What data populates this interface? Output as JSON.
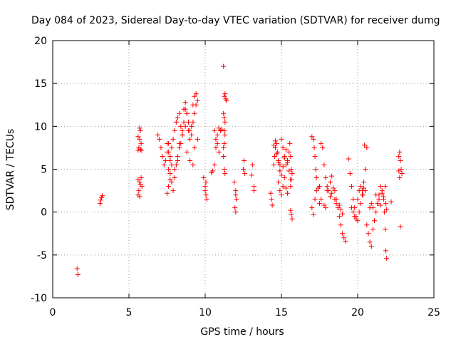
{
  "chart_data": {
    "type": "scatter",
    "title": "Day 084 of 2023, Sidereal Day-to-day VTEC variation (SDTVAR) for receiver dumg",
    "xlabel": "GPS time / hours",
    "ylabel": "SDTVAR / TECUs",
    "xlim": [
      0,
      25
    ],
    "ylim": [
      -10,
      20
    ],
    "xticks": [
      0,
      5,
      10,
      15,
      20,
      25
    ],
    "yticks": [
      -10,
      -5,
      0,
      5,
      10,
      15,
      20
    ],
    "grid": true,
    "marker": "+",
    "color": "#ff0000",
    "series": [
      {
        "name": "SDTVAR",
        "x": [
          1.6,
          1.65,
          3.1,
          3.15,
          3.2,
          3.25,
          5.6,
          5.65,
          5.7,
          5.75,
          5.8,
          5.6,
          5.65,
          5.7,
          5.75,
          5.8,
          5.85,
          5.6,
          5.7,
          5.8,
          5.6,
          5.7,
          5.75,
          6.9,
          7.0,
          7.1,
          7.2,
          7.3,
          7.4,
          7.5,
          7.6,
          7.7,
          7.8,
          7.9,
          8.0,
          8.1,
          8.2,
          8.3,
          8.4,
          8.5,
          8.6,
          8.7,
          8.8,
          8.9,
          9.0,
          9.1,
          9.2,
          9.3,
          9.4,
          7.6,
          7.7,
          7.8,
          7.9,
          8.0,
          8.1,
          8.2,
          8.3,
          8.4,
          8.5,
          8.6,
          8.7,
          8.8,
          8.9,
          9.0,
          9.1,
          9.2,
          9.3,
          9.4,
          9.5,
          7.5,
          7.6,
          7.7,
          7.8,
          7.5,
          7.6,
          7.7,
          8.0,
          8.2,
          8.3,
          8.5,
          8.7,
          8.8,
          9.0,
          9.2,
          9.3,
          9.5,
          9.9,
          10.0,
          10.05,
          10.1,
          10.05,
          10.0,
          10.4,
          10.5,
          10.6,
          10.7,
          10.8,
          10.9,
          11.0,
          11.1,
          10.6,
          10.7,
          10.8,
          10.9,
          11.0,
          11.2,
          11.25,
          11.3,
          11.35,
          11.4,
          11.2,
          11.25,
          11.3,
          11.25,
          11.3,
          11.2,
          11.25,
          11.3,
          11.2,
          11.25,
          11.9,
          12.0,
          12.05,
          11.95,
          12.0,
          12.0,
          12.5,
          12.6,
          12.55,
          13.1,
          13.05,
          13.2,
          13.2,
          14.3,
          14.35,
          14.4,
          14.5,
          14.55,
          14.6,
          14.7,
          14.75,
          14.8,
          14.9,
          15.0,
          15.1,
          15.2,
          15.3,
          15.4,
          15.5,
          15.55,
          15.6,
          15.65,
          15.7,
          14.5,
          14.6,
          14.7,
          14.8,
          14.9,
          15.0,
          15.1,
          15.2,
          15.3,
          15.4,
          15.5,
          15.6,
          14.8,
          14.9,
          15.0,
          15.1,
          15.2,
          15.3,
          15.4,
          15.6,
          15.65,
          15.7,
          15.6,
          15.65,
          17.0,
          17.1,
          17.15,
          17.2,
          17.25,
          17.3,
          17.0,
          17.1,
          17.2,
          17.3,
          17.4,
          17.5,
          17.6,
          17.7,
          17.8,
          17.9,
          18.0,
          18.1,
          18.2,
          18.3,
          18.4,
          18.5,
          18.6,
          18.7,
          18.8,
          18.9,
          19.0,
          19.1,
          19.2,
          17.5,
          17.6,
          17.8,
          17.9,
          18.0,
          18.2,
          18.3,
          18.5,
          18.6,
          18.8,
          18.9,
          19.0,
          19.4,
          19.5,
          19.6,
          19.7,
          19.8,
          19.9,
          20.0,
          20.1,
          20.2,
          20.3,
          20.4,
          20.5,
          20.6,
          19.6,
          19.7,
          19.8,
          19.9,
          20.0,
          20.1,
          20.2,
          20.3,
          20.35,
          20.4,
          20.45,
          20.5,
          20.6,
          20.7,
          20.8,
          20.9,
          21.0,
          21.1,
          21.2,
          21.3,
          21.4,
          21.5,
          21.6,
          21.7,
          21.75,
          21.8,
          21.85,
          21.9,
          20.8,
          20.9,
          21.0,
          21.2,
          21.4,
          21.5,
          21.6,
          21.7,
          21.8,
          21.85,
          21.9,
          22.2,
          22.7,
          22.75,
          22.8,
          22.85,
          22.9,
          22.75,
          22.8,
          22.7
        ],
        "y": [
          -6.6,
          -7.3,
          1.0,
          1.4,
          1.7,
          1.9,
          7.2,
          7.5,
          8.5,
          9.5,
          8.0,
          3.8,
          2.5,
          1.8,
          3.2,
          4.0,
          3.0,
          8.8,
          9.8,
          7.2,
          2.0,
          3.5,
          7.3,
          9.0,
          8.5,
          7.5,
          6.5,
          5.5,
          6.0,
          7.0,
          8.0,
          6.5,
          7.5,
          8.5,
          9.5,
          10.5,
          11.0,
          11.5,
          10.0,
          9.0,
          12.0,
          12.8,
          11.5,
          10.5,
          9.5,
          10.0,
          12.5,
          13.5,
          13.8,
          5.0,
          4.5,
          3.5,
          2.5,
          4.0,
          5.5,
          6.0,
          7.5,
          8.0,
          9.5,
          10.5,
          12.0,
          11.5,
          9.5,
          8.5,
          9.0,
          10.5,
          11.5,
          12.5,
          13.0,
          8.0,
          7.0,
          6.0,
          5.5,
          2.2,
          3.0,
          3.8,
          5.0,
          6.5,
          8.0,
          9.0,
          10.0,
          7.0,
          6.0,
          5.5,
          7.5,
          8.5,
          4.0,
          3.0,
          2.0,
          1.5,
          3.5,
          2.5,
          4.6,
          4.8,
          5.5,
          7.5,
          9.0,
          9.8,
          9.5,
          9.6,
          9.5,
          8.5,
          8.0,
          7.0,
          9.5,
          17.0,
          13.5,
          13.8,
          13.2,
          13.0,
          11.5,
          11.0,
          10.5,
          9.5,
          9.0,
          6.5,
          5.0,
          4.5,
          7.5,
          8.0,
          3.5,
          2.5,
          1.5,
          0.5,
          0.0,
          2.0,
          5.0,
          4.5,
          6.0,
          5.5,
          4.3,
          3.0,
          2.5,
          2.2,
          1.5,
          0.8,
          5.5,
          6.5,
          7.5,
          8.0,
          7.0,
          6.0,
          5.5,
          8.5,
          7.5,
          6.5,
          5.5,
          6.0,
          7.0,
          8.0,
          6.5,
          5.0,
          4.5,
          7.8,
          8.3,
          6.8,
          5.8,
          4.8,
          4.3,
          5.3,
          6.3,
          7.3,
          5.8,
          4.8,
          3.8,
          3.5,
          2.5,
          2.0,
          3.0,
          4.0,
          2.8,
          2.2,
          0.2,
          -0.3,
          -0.8,
          3.0,
          3.8,
          8.8,
          8.5,
          7.5,
          6.5,
          5.0,
          4.0,
          0.5,
          -0.3,
          1.5,
          2.5,
          2.8,
          3.0,
          8.0,
          7.5,
          5.5,
          4.0,
          3.0,
          2.5,
          3.5,
          4.2,
          2.8,
          2.5,
          1.5,
          0.5,
          -0.5,
          -1.5,
          -2.5,
          -3.0,
          -3.4,
          1.0,
          1.5,
          0.8,
          0.5,
          2.5,
          1.8,
          2.2,
          1.5,
          1.0,
          0.8,
          0.3,
          -0.2,
          6.2,
          4.5,
          3.0,
          1.5,
          0.5,
          -0.5,
          -1.0,
          0.0,
          1.0,
          2.0,
          3.5,
          5.0,
          7.5,
          0.5,
          0.0,
          -0.5,
          -0.8,
          1.5,
          2.5,
          3.0,
          2.5,
          2.0,
          2.8,
          7.8,
          2.5,
          -1.5,
          -2.5,
          -3.5,
          -4.0,
          -2.0,
          -1.0,
          0.0,
          1.0,
          2.0,
          3.0,
          2.5,
          1.5,
          0.0,
          -2.0,
          -4.5,
          -5.4,
          0.5,
          1.0,
          0.5,
          2.0,
          1.5,
          0.8,
          2.2,
          1.8,
          3.0,
          1.0,
          0.3,
          1.2,
          6.5,
          7.0,
          6.0,
          5.0,
          4.5,
          4.0,
          -1.7,
          4.8
        ]
      }
    ]
  }
}
